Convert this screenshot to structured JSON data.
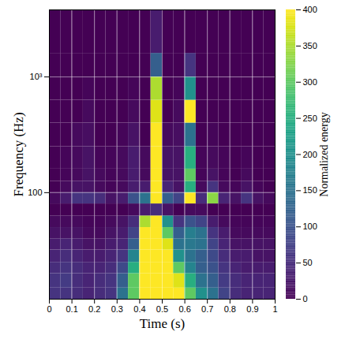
{
  "chart_data": {
    "type": "heatmap",
    "x_label": "Time (s)",
    "y_label": "Frequency (Hz)",
    "xlim": [
      0,
      1
    ],
    "xticks": [
      0,
      0.1,
      0.2,
      0.3,
      0.4,
      0.5,
      0.6,
      0.7,
      0.8,
      0.9,
      1
    ],
    "ylim": [
      12,
      3800
    ],
    "yticks": [
      100,
      {
        "value": 1000,
        "label": "10³"
      }
    ],
    "log": "y",
    "grid": true,
    "color": "viridis",
    "cells": {
      "x_edges": [
        0,
        0.05,
        0.1,
        0.15,
        0.2,
        0.25,
        0.3,
        0.35,
        0.4,
        0.45,
        0.5,
        0.55,
        0.6,
        0.65,
        0.7,
        0.75,
        0.8,
        0.85,
        0.9,
        0.95,
        1
      ],
      "y_edges": [
        12,
        15,
        20,
        25,
        32,
        40,
        50,
        63,
        80,
        100,
        125,
        160,
        250,
        400,
        630,
        1000,
        1600,
        3800
      ],
      "values": [
        [
          60,
          60,
          50,
          40,
          50,
          60,
          150,
          300,
          400,
          400,
          400,
          400,
          300,
          200,
          150,
          80,
          50,
          40,
          40,
          40
        ],
        [
          60,
          70,
          50,
          40,
          50,
          60,
          120,
          300,
          400,
          400,
          400,
          380,
          250,
          150,
          120,
          70,
          50,
          40,
          40,
          40
        ],
        [
          50,
          60,
          50,
          40,
          40,
          50,
          90,
          250,
          400,
          400,
          400,
          300,
          180,
          120,
          100,
          60,
          40,
          30,
          30,
          30
        ],
        [
          40,
          50,
          40,
          30,
          30,
          40,
          60,
          180,
          400,
          400,
          400,
          200,
          150,
          120,
          90,
          50,
          30,
          30,
          20,
          20
        ],
        [
          30,
          40,
          30,
          20,
          20,
          30,
          40,
          120,
          400,
          400,
          380,
          150,
          160,
          150,
          80,
          40,
          20,
          20,
          20,
          20
        ],
        [
          20,
          20,
          20,
          10,
          10,
          20,
          30,
          80,
          400,
          400,
          300,
          120,
          170,
          150,
          60,
          30,
          10,
          10,
          10,
          10
        ],
        [
          10,
          10,
          10,
          5,
          5,
          10,
          20,
          50,
          350,
          400,
          200,
          60,
          100,
          80,
          30,
          10,
          5,
          5,
          5,
          5
        ],
        [
          0,
          0,
          0,
          0,
          0,
          0,
          0,
          10,
          30,
          50,
          20,
          0,
          10,
          10,
          0,
          0,
          0,
          0,
          0,
          0
        ],
        [
          10,
          30,
          60,
          60,
          50,
          20,
          30,
          100,
          150,
          400,
          120,
          80,
          400,
          50,
          330,
          40,
          20,
          60,
          20,
          10
        ],
        [
          0,
          10,
          20,
          20,
          10,
          5,
          10,
          30,
          30,
          400,
          40,
          20,
          250,
          10,
          60,
          10,
          5,
          20,
          5,
          0
        ],
        [
          0,
          5,
          10,
          20,
          10,
          5,
          10,
          30,
          10,
          400,
          20,
          20,
          300,
          5,
          20,
          5,
          0,
          10,
          0,
          0
        ],
        [
          0,
          5,
          10,
          20,
          5,
          5,
          10,
          30,
          10,
          400,
          20,
          20,
          250,
          5,
          10,
          5,
          0,
          5,
          0,
          0
        ],
        [
          0,
          0,
          10,
          15,
          0,
          0,
          5,
          20,
          0,
          400,
          10,
          15,
          150,
          0,
          5,
          0,
          0,
          0,
          0,
          0
        ],
        [
          0,
          0,
          0,
          10,
          0,
          0,
          0,
          10,
          0,
          380,
          0,
          10,
          400,
          0,
          0,
          0,
          0,
          0,
          0,
          0
        ],
        [
          0,
          0,
          0,
          5,
          0,
          0,
          0,
          5,
          0,
          350,
          0,
          5,
          200,
          0,
          0,
          0,
          0,
          0,
          0,
          0
        ],
        [
          0,
          0,
          0,
          0,
          0,
          0,
          0,
          0,
          0,
          120,
          0,
          0,
          60,
          0,
          0,
          0,
          0,
          0,
          0,
          0
        ],
        [
          0,
          0,
          0,
          0,
          0,
          0,
          0,
          0,
          0,
          30,
          0,
          0,
          0,
          0,
          0,
          0,
          0,
          0,
          0,
          0
        ]
      ]
    },
    "colorbar": {
      "label": "Normalized energy",
      "range": [
        0,
        400
      ],
      "ticks": [
        0,
        50,
        100,
        150,
        200,
        250,
        300,
        350,
        400
      ]
    }
  }
}
